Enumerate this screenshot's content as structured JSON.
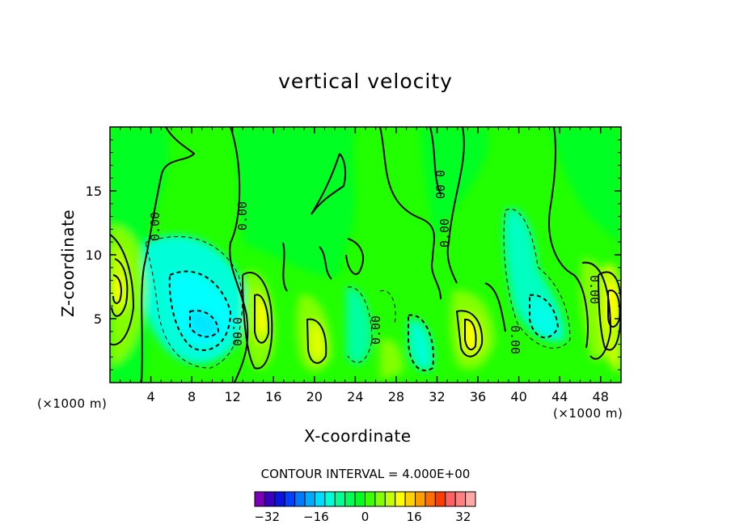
{
  "chart_data": {
    "type": "heatmap",
    "title": "vertical velocity",
    "xlabel": "X-coordinate",
    "ylabel": "Z-coordinate",
    "x_unit": "(×1000 m)",
    "x_unit_right": "(×1000 m)",
    "xlim": [
      0,
      50
    ],
    "ylim": [
      0,
      20
    ],
    "x_ticks": [
      "4",
      "8",
      "12",
      "16",
      "20",
      "24",
      "28",
      "32",
      "36",
      "40",
      "44",
      "48"
    ],
    "y_ticks": [
      "5",
      "10",
      "15"
    ],
    "contour_interval_text": "CONTOUR INTERVAL = 4.000E+00",
    "contour_interval": 4,
    "contour_label": "0.00",
    "colorbar": {
      "ticks": [
        "−32",
        "−16",
        "0",
        "16",
        "32"
      ],
      "tick_values": [
        -32,
        -16,
        0,
        16,
        32
      ],
      "min": -36,
      "max": 36,
      "colors": [
        "#7b00b8",
        "#3a00c0",
        "#0a14dc",
        "#0040ff",
        "#0078ff",
        "#00aaff",
        "#00dcff",
        "#00ffd8",
        "#00ff96",
        "#00ff5a",
        "#00ff20",
        "#3cff00",
        "#82ff00",
        "#c4ff00",
        "#ffff00",
        "#ffd200",
        "#ffa000",
        "#ff6e00",
        "#ff3c00",
        "#ff6060",
        "#ff8080",
        "#ffa8a8"
      ]
    },
    "features": [
      {
        "x": 1.3,
        "z": 7.5,
        "value": 16
      },
      {
        "x": 9.8,
        "z": 4.2,
        "value": -16
      },
      {
        "x": 14.8,
        "z": 5.0,
        "value": 14
      },
      {
        "x": 20.5,
        "z": 3.5,
        "value": 12
      },
      {
        "x": 25.8,
        "z": 4.5,
        "value": -8
      },
      {
        "x": 31.0,
        "z": 2.5,
        "value": -10
      },
      {
        "x": 35.5,
        "z": 3.5,
        "value": 14
      },
      {
        "x": 42.5,
        "z": 4.2,
        "value": -10
      },
      {
        "x": 45.5,
        "z": 6.5,
        "value": 10
      },
      {
        "x": 49.2,
        "z": 6.0,
        "value": 14
      }
    ]
  }
}
